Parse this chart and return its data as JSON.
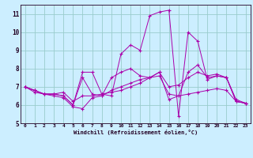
{
  "title": "",
  "xlabel": "Windchill (Refroidissement éolien,°C)",
  "bg_color": "#cceeff",
  "grid_color": "#99cccc",
  "line_color": "#aa00aa",
  "xlim": [
    -0.5,
    23.5
  ],
  "ylim": [
    5.0,
    11.5
  ],
  "yticks": [
    5,
    6,
    7,
    8,
    9,
    10,
    11
  ],
  "xticks": [
    0,
    1,
    2,
    3,
    4,
    5,
    6,
    7,
    8,
    9,
    10,
    11,
    12,
    13,
    14,
    15,
    16,
    17,
    18,
    19,
    20,
    21,
    22,
    23
  ],
  "series": [
    [
      0,
      7.0
    ],
    [
      1,
      6.8
    ],
    [
      2,
      6.6
    ],
    [
      3,
      6.6
    ],
    [
      4,
      6.5
    ],
    [
      5,
      6.0
    ],
    [
      6,
      7.8
    ],
    [
      7,
      7.8
    ],
    [
      8,
      6.6
    ],
    [
      9,
      6.5
    ],
    [
      10,
      8.8
    ],
    [
      11,
      9.3
    ],
    [
      12,
      9.0
    ],
    [
      13,
      10.9
    ],
    [
      14,
      11.1
    ],
    [
      15,
      11.2
    ],
    [
      16,
      5.4
    ],
    [
      17,
      10.0
    ],
    [
      18,
      9.5
    ],
    [
      19,
      7.4
    ],
    [
      20,
      7.6
    ],
    [
      21,
      7.5
    ],
    [
      22,
      6.2
    ],
    [
      23,
      6.1
    ]
  ],
  "series2": [
    [
      0,
      7.0
    ],
    [
      1,
      6.8
    ],
    [
      2,
      6.6
    ],
    [
      3,
      6.6
    ],
    [
      4,
      6.7
    ],
    [
      5,
      6.2
    ],
    [
      6,
      6.5
    ],
    [
      7,
      6.5
    ],
    [
      8,
      6.6
    ],
    [
      9,
      6.7
    ],
    [
      10,
      6.8
    ],
    [
      11,
      7.0
    ],
    [
      12,
      7.2
    ],
    [
      13,
      7.5
    ],
    [
      14,
      7.8
    ],
    [
      15,
      6.3
    ],
    [
      16,
      6.5
    ],
    [
      17,
      7.8
    ],
    [
      18,
      8.2
    ],
    [
      19,
      7.5
    ],
    [
      20,
      7.6
    ],
    [
      21,
      7.5
    ],
    [
      22,
      6.2
    ],
    [
      23,
      6.1
    ]
  ],
  "series3": [
    [
      0,
      7.0
    ],
    [
      1,
      6.7
    ],
    [
      2,
      6.6
    ],
    [
      3,
      6.5
    ],
    [
      4,
      6.4
    ],
    [
      5,
      5.9
    ],
    [
      6,
      5.8
    ],
    [
      7,
      6.4
    ],
    [
      8,
      6.5
    ],
    [
      9,
      6.8
    ],
    [
      10,
      7.0
    ],
    [
      11,
      7.2
    ],
    [
      12,
      7.4
    ],
    [
      13,
      7.5
    ],
    [
      14,
      7.6
    ],
    [
      15,
      6.6
    ],
    [
      16,
      6.5
    ],
    [
      17,
      6.6
    ],
    [
      18,
      6.7
    ],
    [
      19,
      6.8
    ],
    [
      20,
      6.9
    ],
    [
      21,
      6.8
    ],
    [
      22,
      6.2
    ],
    [
      23,
      6.1
    ]
  ],
  "series4": [
    [
      0,
      7.0
    ],
    [
      1,
      6.8
    ],
    [
      2,
      6.6
    ],
    [
      3,
      6.6
    ],
    [
      4,
      6.5
    ],
    [
      5,
      6.0
    ],
    [
      6,
      7.5
    ],
    [
      7,
      6.6
    ],
    [
      8,
      6.5
    ],
    [
      9,
      7.5
    ],
    [
      10,
      7.8
    ],
    [
      11,
      8.0
    ],
    [
      12,
      7.6
    ],
    [
      13,
      7.5
    ],
    [
      14,
      7.8
    ],
    [
      15,
      7.0
    ],
    [
      16,
      7.1
    ],
    [
      17,
      7.5
    ],
    [
      18,
      7.8
    ],
    [
      19,
      7.6
    ],
    [
      20,
      7.7
    ],
    [
      21,
      7.5
    ],
    [
      22,
      6.3
    ],
    [
      23,
      6.1
    ]
  ]
}
